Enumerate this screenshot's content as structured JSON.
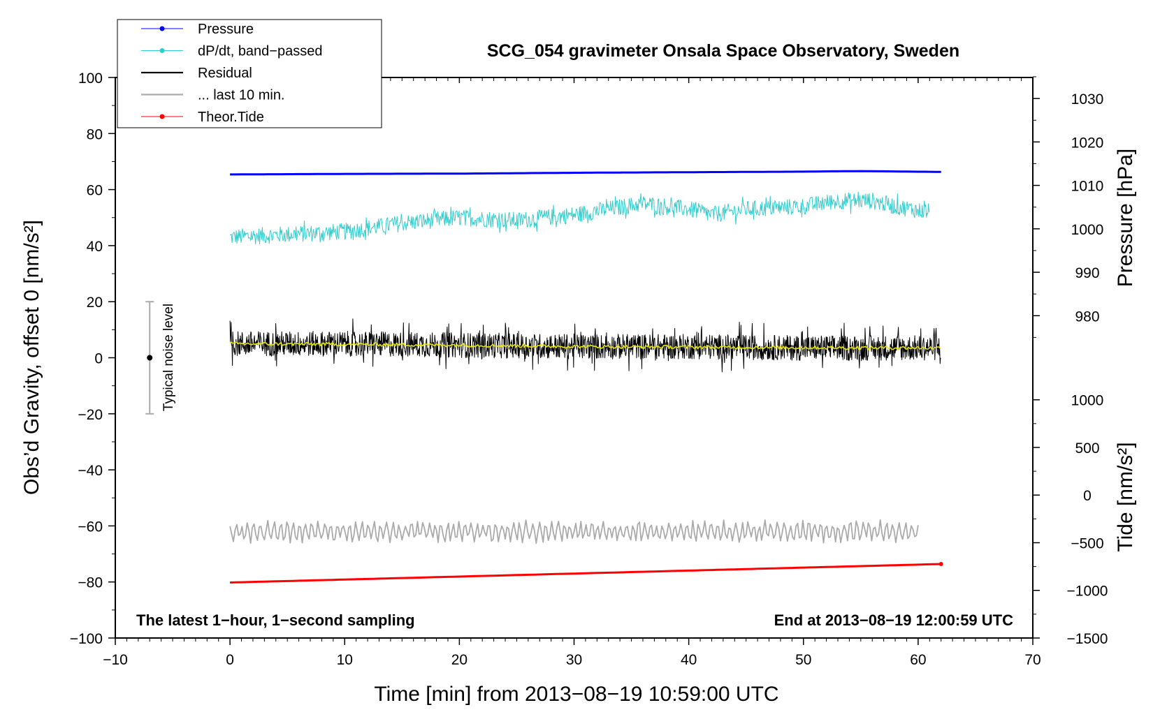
{
  "chart_data": {
    "type": "line",
    "title": "SCG_054 gravimeter Onsala Space Observatory, Sweden",
    "xlabel": "Time [min] from 2013−08−19 10:59:00 UTC",
    "ylabel_left": "Obs’d Gravity, offset 0 [nm/s²]",
    "ylabel_pressure": "Pressure [hPa]",
    "ylabel_tide": "Tide [nm/s²]",
    "xlim": [
      -10,
      70
    ],
    "ylim": [
      -100,
      100
    ],
    "xticks": [
      -10,
      0,
      10,
      20,
      30,
      40,
      50,
      60,
      70
    ],
    "xtick_labels": [
      "−10",
      "0",
      "10",
      "20",
      "30",
      "40",
      "50",
      "60",
      "70"
    ],
    "yticks": [
      -100,
      -80,
      -60,
      -40,
      -20,
      0,
      20,
      40,
      60,
      80,
      100
    ],
    "ytick_labels": [
      "−100",
      "−80",
      "−60",
      "−40",
      "−20",
      "0",
      "20",
      "40",
      "60",
      "80",
      "100"
    ],
    "pressure_axis": {
      "ticks": [
        980,
        990,
        1000,
        1010,
        1020,
        1030
      ],
      "tick_labels": [
        "980",
        "990",
        "1000",
        "1010",
        "1020",
        "1030"
      ],
      "gravity_at_980": 15,
      "gravity_per_hpa": 1.55
    },
    "tide_axis": {
      "ticks": [
        -1500,
        -1000,
        -500,
        0,
        500,
        1000
      ],
      "tick_labels": [
        "−1500",
        "−1000",
        "−500",
        "0",
        "500",
        "1000"
      ],
      "gravity_at_minus1500": -100,
      "gravity_per_unit": 0.034
    },
    "legend": [
      {
        "label": "Pressure",
        "color": "#0000ff",
        "marker": true
      },
      {
        "label": "dP/dt, band−passed",
        "color": "#33cccc",
        "marker": true
      },
      {
        "label": "Residual",
        "color": "#000000",
        "marker": false
      },
      {
        "label": "... last 10 min.",
        "color": "#aaaaaa",
        "marker": false
      },
      {
        "label": "Theor.Tide",
        "color": "#ff0000",
        "marker": true
      }
    ],
    "series": [
      {
        "name": "Pressure",
        "color": "#0000ff",
        "x": [
          0,
          10,
          20,
          30,
          40,
          50,
          52,
          55,
          62
        ],
        "y": [
          65.4,
          65.6,
          65.7,
          66.0,
          66.2,
          66.4,
          66.5,
          66.6,
          66.3
        ]
      },
      {
        "name": "dP/dt, band-passed",
        "color": "#33cccc",
        "x": [
          0,
          5,
          10,
          15,
          20,
          25,
          30,
          33,
          36,
          40,
          42,
          45,
          50,
          53,
          56,
          58,
          61
        ],
        "y": [
          43,
          44,
          45,
          48,
          50,
          49,
          51,
          53,
          55,
          53,
          51,
          53,
          54,
          56,
          56,
          54,
          52
        ],
        "noise_amplitude": 3
      },
      {
        "name": "Residual",
        "color": "#000000",
        "x": [
          0,
          10,
          20,
          30,
          40,
          50,
          62
        ],
        "y": [
          5,
          5,
          4.5,
          4,
          4,
          3.5,
          3.5
        ],
        "noise_amplitude": 4.5
      },
      {
        "name": "Residual smoothed",
        "color": "#e6e600",
        "x": [
          0,
          10,
          20,
          30,
          40,
          50,
          62
        ],
        "y": [
          5,
          4.8,
          4.5,
          4,
          3.8,
          3.6,
          3.5
        ]
      },
      {
        "name": "... last 10 min.",
        "color": "#aaaaaa",
        "x": [
          0,
          10,
          20,
          30,
          40,
          50,
          60
        ],
        "y": [
          -62,
          -62,
          -62,
          -62,
          -62,
          -62,
          -62
        ],
        "noise_amplitude": 3.5
      },
      {
        "name": "Theor.Tide",
        "color": "#ff0000",
        "x": [
          0,
          62
        ],
        "y": [
          -80.2,
          -73.6
        ]
      }
    ],
    "noise_bar": {
      "x": -7,
      "center": 0,
      "low": -20,
      "high": 20,
      "label": "Typical noise level"
    },
    "footer_left": "The latest 1−hour, 1−second sampling",
    "footer_right": "End at 2013−08−19 12:00:59 UTC"
  }
}
